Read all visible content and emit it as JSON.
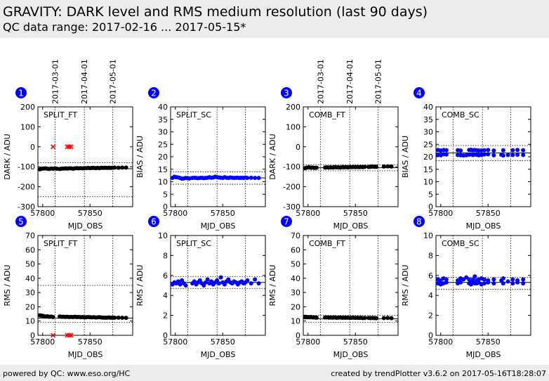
{
  "header": {
    "title": "GRAVITY: DARK level and RMS medium resolution (last 90 days)",
    "range": "QC data range: 2017-02-16 ... 2017-05-15*"
  },
  "footer": {
    "left": "powered by QC: www.eso.org/HC",
    "right": "created by trendPlotter v3.6.2 on 2017-05-16T18:28:07"
  },
  "colors": {
    "black_series": "#000000",
    "blue_series": "#0000ff",
    "outlier": "#ff0000",
    "badge": "#0000ff",
    "band": "#ececec"
  },
  "date_marks": {
    "labels": [
      "2017-03-01",
      "2017-04-01",
      "2017-05-01"
    ],
    "mjd": [
      57813,
      57844,
      57874
    ]
  },
  "chart_data": [
    {
      "id": "1",
      "type": "scatter",
      "label": "SPLIT_FT",
      "ylabel": "DARK / ADU",
      "xlabel": "MJD_OBS",
      "xlim": [
        57795,
        57895
      ],
      "ylim": [
        -300,
        200
      ],
      "yticks": [
        -300,
        -200,
        -100,
        0,
        100,
        200
      ],
      "xticks": [
        57800,
        57850
      ],
      "color": "black",
      "ref_line": -110,
      "bands": [
        -80,
        -250
      ],
      "x": [
        57797,
        57799,
        57801,
        57803,
        57805,
        57807,
        57809,
        57811,
        57813,
        57815,
        57818,
        57820,
        57822,
        57824,
        57826,
        57828,
        57830,
        57832,
        57834,
        57836,
        57838,
        57840,
        57842,
        57844,
        57846,
        57848,
        57850,
        57852,
        57854,
        57856,
        57858,
        57860,
        57862,
        57864,
        57866,
        57868,
        57870,
        57872,
        57874,
        57876,
        57880,
        57884,
        57888
      ],
      "y": [
        -113,
        -110,
        -109,
        -108,
        -110,
        -111,
        -109,
        -110,
        -108,
        -110,
        -111,
        -110,
        -109,
        -108,
        -109,
        -108,
        -108,
        -110,
        -108,
        -107,
        -108,
        -107,
        -108,
        -107,
        -107,
        -106,
        -107,
        -106,
        -106,
        -107,
        -106,
        -107,
        -105,
        -106,
        -105,
        -106,
        -105,
        -106,
        -105,
        -104,
        -105,
        -104,
        -104
      ],
      "outliers_x": [
        57811,
        57826,
        57828,
        57830
      ],
      "outliers_y": [
        0,
        0,
        0,
        0
      ]
    },
    {
      "id": "2",
      "type": "scatter",
      "label": "SPLIT_SC",
      "ylabel": "BIAS / ADU",
      "xlabel": "MJD_OBS",
      "xlim": [
        57795,
        57895
      ],
      "ylim": [
        0,
        40
      ],
      "yticks": [
        0,
        5,
        10,
        15,
        20,
        25,
        30,
        35,
        40
      ],
      "xticks": [
        57800,
        57850
      ],
      "color": "blue",
      "ref_line": 11.5,
      "bands": [
        14,
        9
      ],
      "x": [
        57797,
        57799,
        57801,
        57803,
        57805,
        57807,
        57809,
        57811,
        57813,
        57815,
        57818,
        57820,
        57822,
        57824,
        57826,
        57828,
        57830,
        57832,
        57834,
        57836,
        57838,
        57840,
        57842,
        57844,
        57846,
        57848,
        57850,
        57852,
        57854,
        57856,
        57858,
        57860,
        57862,
        57864,
        57866,
        57868,
        57870,
        57872,
        57874,
        57876,
        57880,
        57884,
        57888
      ],
      "y": [
        11.5,
        12,
        11.8,
        11.7,
        11.5,
        11.2,
        11.3,
        11.5,
        11.4,
        11.3,
        11.5,
        11.6,
        11.5,
        11.4,
        11.5,
        11.6,
        11.4,
        11.5,
        11.6,
        11.8,
        11.6,
        11.7,
        12,
        11.8,
        11.7,
        11.6,
        11.5,
        11.8,
        11.6,
        11.5,
        11.7,
        11.6,
        11.5,
        11.6,
        11.6,
        11.5,
        11.6,
        11.5,
        11.7,
        11.5,
        11.6,
        11.5,
        11.5
      ]
    },
    {
      "id": "3",
      "type": "scatter",
      "label": "COMB_FT",
      "ylabel": "DARK / ADU",
      "xlabel": "MJD_OBS",
      "xlim": [
        57795,
        57895
      ],
      "ylim": [
        -300,
        200
      ],
      "yticks": [
        -300,
        -200,
        -100,
        0,
        100,
        200
      ],
      "xticks": [
        57800,
        57850
      ],
      "color": "black",
      "ref_line": -105,
      "bands": [
        -90,
        -120
      ],
      "x": [
        57797,
        57799,
        57801,
        57803,
        57805,
        57807,
        57809,
        57818,
        57820,
        57822,
        57824,
        57826,
        57828,
        57830,
        57832,
        57834,
        57836,
        57838,
        57840,
        57842,
        57844,
        57846,
        57848,
        57850,
        57852,
        57854,
        57856,
        57858,
        57860,
        57864,
        57866,
        57868,
        57870,
        57872,
        57880,
        57884,
        57888
      ],
      "y": [
        -107,
        -104,
        -103,
        -105,
        -104,
        -106,
        -105,
        -104,
        -103,
        -104,
        -103,
        -104,
        -102,
        -103,
        -103,
        -104,
        -102,
        -103,
        -102,
        -103,
        -102,
        -102,
        -101,
        -102,
        -101,
        -102,
        -101,
        -102,
        -100,
        -101,
        -100,
        -99,
        -100,
        -100,
        -99,
        -98,
        -99
      ]
    },
    {
      "id": "4",
      "type": "scatter",
      "label": "COMB_SC",
      "ylabel": "BIAS / ADU",
      "xlabel": "MJD_OBS",
      "xlim": [
        57795,
        57895
      ],
      "ylim": [
        0,
        40
      ],
      "yticks": [
        0,
        5,
        10,
        15,
        20,
        25,
        30,
        35,
        40
      ],
      "xticks": [
        57800,
        57850
      ],
      "color": "blue",
      "ref_line": 21.5,
      "bands": [
        24.5,
        18.5
      ],
      "x": [
        57797,
        57797,
        57800,
        57800,
        57803,
        57803,
        57806,
        57806,
        57818,
        57818,
        57821,
        57821,
        57824,
        57827,
        57830,
        57830,
        57832,
        57832,
        57834,
        57834,
        57836,
        57836,
        57838,
        57838,
        57840,
        57840,
        57843,
        57843,
        57846,
        57846,
        57850,
        57850,
        57856,
        57856,
        57864,
        57866,
        57866,
        57871,
        57876,
        57876,
        57881,
        57881,
        57887,
        57887
      ],
      "y": [
        22.7,
        20.8,
        22.5,
        20.6,
        22.7,
        21,
        22.6,
        20.9,
        22.6,
        20.7,
        22.5,
        20.6,
        20.5,
        20.6,
        22.7,
        20.8,
        22.8,
        21,
        22.6,
        20.7,
        22.7,
        20.9,
        22.6,
        20.8,
        22.5,
        20.6,
        22.5,
        20.7,
        22.6,
        20.9,
        22.7,
        21,
        22.5,
        20.6,
        20.8,
        22.6,
        20.5,
        20.7,
        22.6,
        20.7,
        22.7,
        20.8,
        22.6,
        20.7
      ]
    },
    {
      "id": "5",
      "type": "scatter",
      "label": "SPLIT_FT",
      "ylabel": "RMS / ADU",
      "xlabel": "MJD_OBS",
      "xlim": [
        57795,
        57895
      ],
      "ylim": [
        0,
        70
      ],
      "yticks": [
        0,
        10,
        20,
        30,
        40,
        50,
        60,
        70
      ],
      "xticks": [
        57800,
        57850
      ],
      "color": "black",
      "ref_line": 12,
      "bands": [
        35,
        9
      ],
      "x": [
        57797,
        57799,
        57801,
        57803,
        57805,
        57807,
        57809,
        57811,
        57818,
        57820,
        57822,
        57824,
        57826,
        57828,
        57830,
        57832,
        57834,
        57836,
        57838,
        57840,
        57842,
        57844,
        57846,
        57848,
        57850,
        57852,
        57854,
        57856,
        57858,
        57860,
        57862,
        57864,
        57866,
        57868,
        57870,
        57872,
        57874,
        57876,
        57880,
        57884,
        57888
      ],
      "y": [
        14,
        13.8,
        13.5,
        13.2,
        13.3,
        13,
        13.1,
        12.8,
        13.2,
        13,
        13,
        12.9,
        13,
        12.8,
        12.9,
        12.8,
        13,
        12.8,
        12.9,
        12.7,
        12.8,
        12.6,
        12.7,
        12.8,
        12.7,
        12.6,
        12.7,
        12.5,
        12.6,
        12.7,
        12.5,
        12.4,
        12.3,
        12.4,
        12.5,
        12.3,
        12.4,
        12.3,
        12.4,
        12.3,
        12.2
      ],
      "outliers_x": [
        57811,
        57826,
        57828,
        57830
      ],
      "outliers_y": [
        0,
        0,
        0,
        0
      ]
    },
    {
      "id": "6",
      "type": "scatter",
      "label": "SPLIT_SC",
      "ylabel": "RMS / ADU",
      "xlabel": "MJD_OBS",
      "xlim": [
        57795,
        57895
      ],
      "ylim": [
        0,
        10
      ],
      "yticks": [
        0,
        2,
        4,
        6,
        8,
        10
      ],
      "xticks": [
        57800,
        57850
      ],
      "color": "blue",
      "ref_line": 5.3,
      "bands": [
        5.9,
        4.7
      ],
      "x": [
        57797,
        57799,
        57801,
        57803,
        57805,
        57807,
        57809,
        57811,
        57818,
        57820,
        57822,
        57824,
        57826,
        57828,
        57830,
        57832,
        57834,
        57836,
        57838,
        57840,
        57842,
        57844,
        57846,
        57848,
        57850,
        57852,
        57854,
        57856,
        57858,
        57860,
        57862,
        57864,
        57866,
        57868,
        57870,
        57872,
        57874,
        57876,
        57880,
        57884,
        57888
      ],
      "y": [
        5.1,
        5.3,
        5.2,
        5.4,
        5.1,
        5.5,
        5.2,
        5.0,
        5.2,
        5.4,
        5.1,
        5.3,
        5.5,
        5.2,
        5.0,
        5.3,
        5.6,
        5.2,
        5.4,
        5.1,
        5.3,
        5.5,
        5.2,
        5.8,
        5.3,
        5.1,
        5.4,
        5.6,
        5.3,
        5.2,
        5.4,
        5.3,
        5.1,
        5.3,
        5.4,
        5.2,
        5.3,
        5.5,
        5.2,
        5.6,
        5.2
      ]
    },
    {
      "id": "7",
      "type": "scatter",
      "label": "COMB_FT",
      "ylabel": "RMS / ADU",
      "xlabel": "MJD_OBS",
      "xlim": [
        57795,
        57895
      ],
      "ylim": [
        0,
        70
      ],
      "yticks": [
        0,
        10,
        20,
        30,
        40,
        50,
        60,
        70
      ],
      "xticks": [
        57800,
        57850
      ],
      "color": "black",
      "ref_line": 11.5,
      "bands": [
        14,
        9
      ],
      "x": [
        57797,
        57799,
        57801,
        57803,
        57805,
        57807,
        57809,
        57818,
        57820,
        57822,
        57824,
        57826,
        57828,
        57830,
        57832,
        57834,
        57836,
        57838,
        57840,
        57842,
        57844,
        57846,
        57848,
        57850,
        57852,
        57854,
        57856,
        57858,
        57860,
        57864,
        57866,
        57868,
        57870,
        57872,
        57880,
        57884,
        57888
      ],
      "y": [
        13,
        12.8,
        12.7,
        12.9,
        12.6,
        12.5,
        12.4,
        12.5,
        12.6,
        12.4,
        12.5,
        12.4,
        12.5,
        12.3,
        12.4,
        12.5,
        12.3,
        12.4,
        12.3,
        12.4,
        12.2,
        12.3,
        12.4,
        12.2,
        12.3,
        12.2,
        12.3,
        12.1,
        12.2,
        12.2,
        12.1,
        12.2,
        12.1,
        12,
        12.1,
        12.2,
        12
      ]
    },
    {
      "id": "8",
      "type": "scatter",
      "label": "COMB_SC",
      "ylabel": "RMS / ADU",
      "xlabel": "MJD_OBS",
      "xlim": [
        57795,
        57895
      ],
      "ylim": [
        0,
        10
      ],
      "yticks": [
        0,
        2,
        4,
        6,
        8,
        10
      ],
      "xticks": [
        57800,
        57850
      ],
      "color": "blue",
      "ref_line": 5.3,
      "bands": [
        5.8,
        4.6
      ],
      "x": [
        57797,
        57797,
        57800,
        57800,
        57803,
        57803,
        57806,
        57806,
        57818,
        57818,
        57821,
        57821,
        57824,
        57827,
        57830,
        57830,
        57832,
        57832,
        57834,
        57834,
        57836,
        57836,
        57838,
        57838,
        57840,
        57840,
        57843,
        57843,
        57846,
        57846,
        57850,
        57850,
        57856,
        57856,
        57864,
        57866,
        57866,
        57871,
        57876,
        57876,
        57881,
        57881,
        57887,
        57887
      ],
      "y": [
        5.6,
        5.2,
        5.5,
        5.1,
        5.7,
        5.2,
        5.6,
        5.3,
        5.5,
        5.2,
        5.7,
        5.3,
        5.6,
        5.8,
        5.6,
        5.2,
        5.5,
        5.1,
        5.6,
        5.3,
        5.9,
        5.2,
        5.5,
        5.2,
        5.6,
        5.3,
        5.7,
        5.1,
        5.6,
        5.2,
        5.5,
        5.3,
        5.6,
        5.2,
        5.5,
        5.7,
        5.2,
        5.4,
        5.6,
        5.2,
        5.5,
        5.3,
        5.6,
        5.2
      ]
    }
  ]
}
